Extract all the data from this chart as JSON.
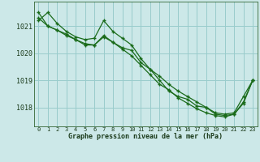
{
  "title": "Graphe pression niveau de la mer (hPa)",
  "bg_color": "#cce8e8",
  "grid_color": "#99cccc",
  "line_color": "#1a6b1a",
  "ylim": [
    1017.3,
    1021.9
  ],
  "yticks": [
    1018,
    1019,
    1020,
    1021
  ],
  "xlim": [
    -0.5,
    23.5
  ],
  "xticks": [
    0,
    1,
    2,
    3,
    4,
    5,
    6,
    7,
    8,
    9,
    10,
    11,
    12,
    13,
    14,
    15,
    16,
    17,
    18,
    19,
    20,
    21,
    22,
    23
  ],
  "series": [
    [
      1021.2,
      1021.5,
      1021.1,
      1020.8,
      1020.6,
      1020.5,
      1020.55,
      1021.2,
      1020.8,
      1020.55,
      1020.3,
      1019.8,
      1019.4,
      1019.0,
      1018.6,
      1018.4,
      1018.3,
      1018.05,
      1018.0,
      1017.8,
      1017.75,
      1017.8,
      1018.4,
      1019.0
    ],
    [
      1021.3,
      1021.0,
      1020.85,
      1020.7,
      1020.5,
      1020.3,
      1020.3,
      1020.65,
      1020.4,
      1020.2,
      1020.1,
      1019.65,
      1019.4,
      1019.15,
      1018.85,
      1018.6,
      1018.4,
      1018.2,
      1018.0,
      1017.75,
      1017.7,
      1017.75,
      1018.2,
      1019.0
    ],
    [
      1021.5,
      1021.0,
      1020.85,
      1020.65,
      1020.5,
      1020.35,
      1020.3,
      1020.6,
      1020.4,
      1020.15,
      1019.9,
      1019.55,
      1019.2,
      1018.85,
      1018.65,
      1018.35,
      1018.15,
      1017.95,
      1017.8,
      1017.7,
      1017.65,
      1017.75,
      1018.15,
      1019.0
    ]
  ],
  "xlabel_fontsize": 6.0,
  "ytick_fontsize": 6.0,
  "xtick_fontsize": 5.0
}
